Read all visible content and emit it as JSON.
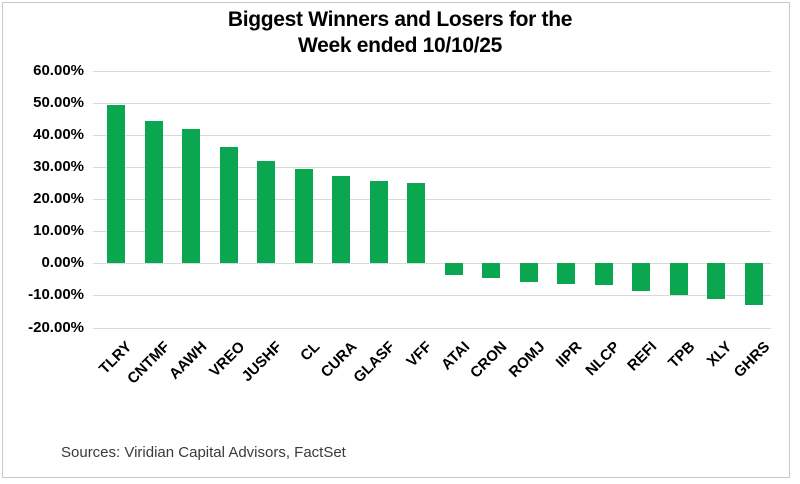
{
  "title": {
    "line1": "Biggest Winners and Losers for the",
    "line2": "Week ended 10/10/25"
  },
  "source_note": "Sources: Viridian Capital Advisors, FactSet",
  "colors": {
    "bar_green": "#0BA750",
    "gridline": "#D9D9D9",
    "chart_border": "#C8C8C8",
    "title_text": "#000000",
    "axis_text": "#000000",
    "source_text": "#3A3A3A"
  },
  "chart_data": {
    "type": "bar",
    "title": "Biggest Winners and Losers for the Week ended 10/10/25",
    "categories": [
      "TLRY",
      "CNTMF",
      "AAWH",
      "VREO",
      "JUSHF",
      "CL",
      "CURA",
      "GLASF",
      "VFF",
      "ATAI",
      "CRON",
      "ROMJ",
      "IIPR",
      "NLCP",
      "REFI",
      "TPB",
      "XLY",
      "GHRS"
    ],
    "values": [
      49.3,
      44.5,
      42.0,
      36.4,
      32.0,
      29.4,
      27.3,
      25.8,
      25.2,
      -3.5,
      -4.7,
      -5.9,
      -6.3,
      -6.7,
      -8.7,
      -10.0,
      -11.2,
      -13.0
    ],
    "value_unit": "percent",
    "xlabel": "",
    "ylabel": "",
    "ylim": [
      -20,
      60
    ],
    "ytick_step": 10,
    "ytick_labels": [
      "60.00%",
      "50.00%",
      "40.00%",
      "30.00%",
      "20.00%",
      "10.00%",
      "0.00%",
      "-10.00%",
      "-20.00%"
    ],
    "grid": true,
    "legend": "none",
    "bar_color": "#0BA750"
  }
}
